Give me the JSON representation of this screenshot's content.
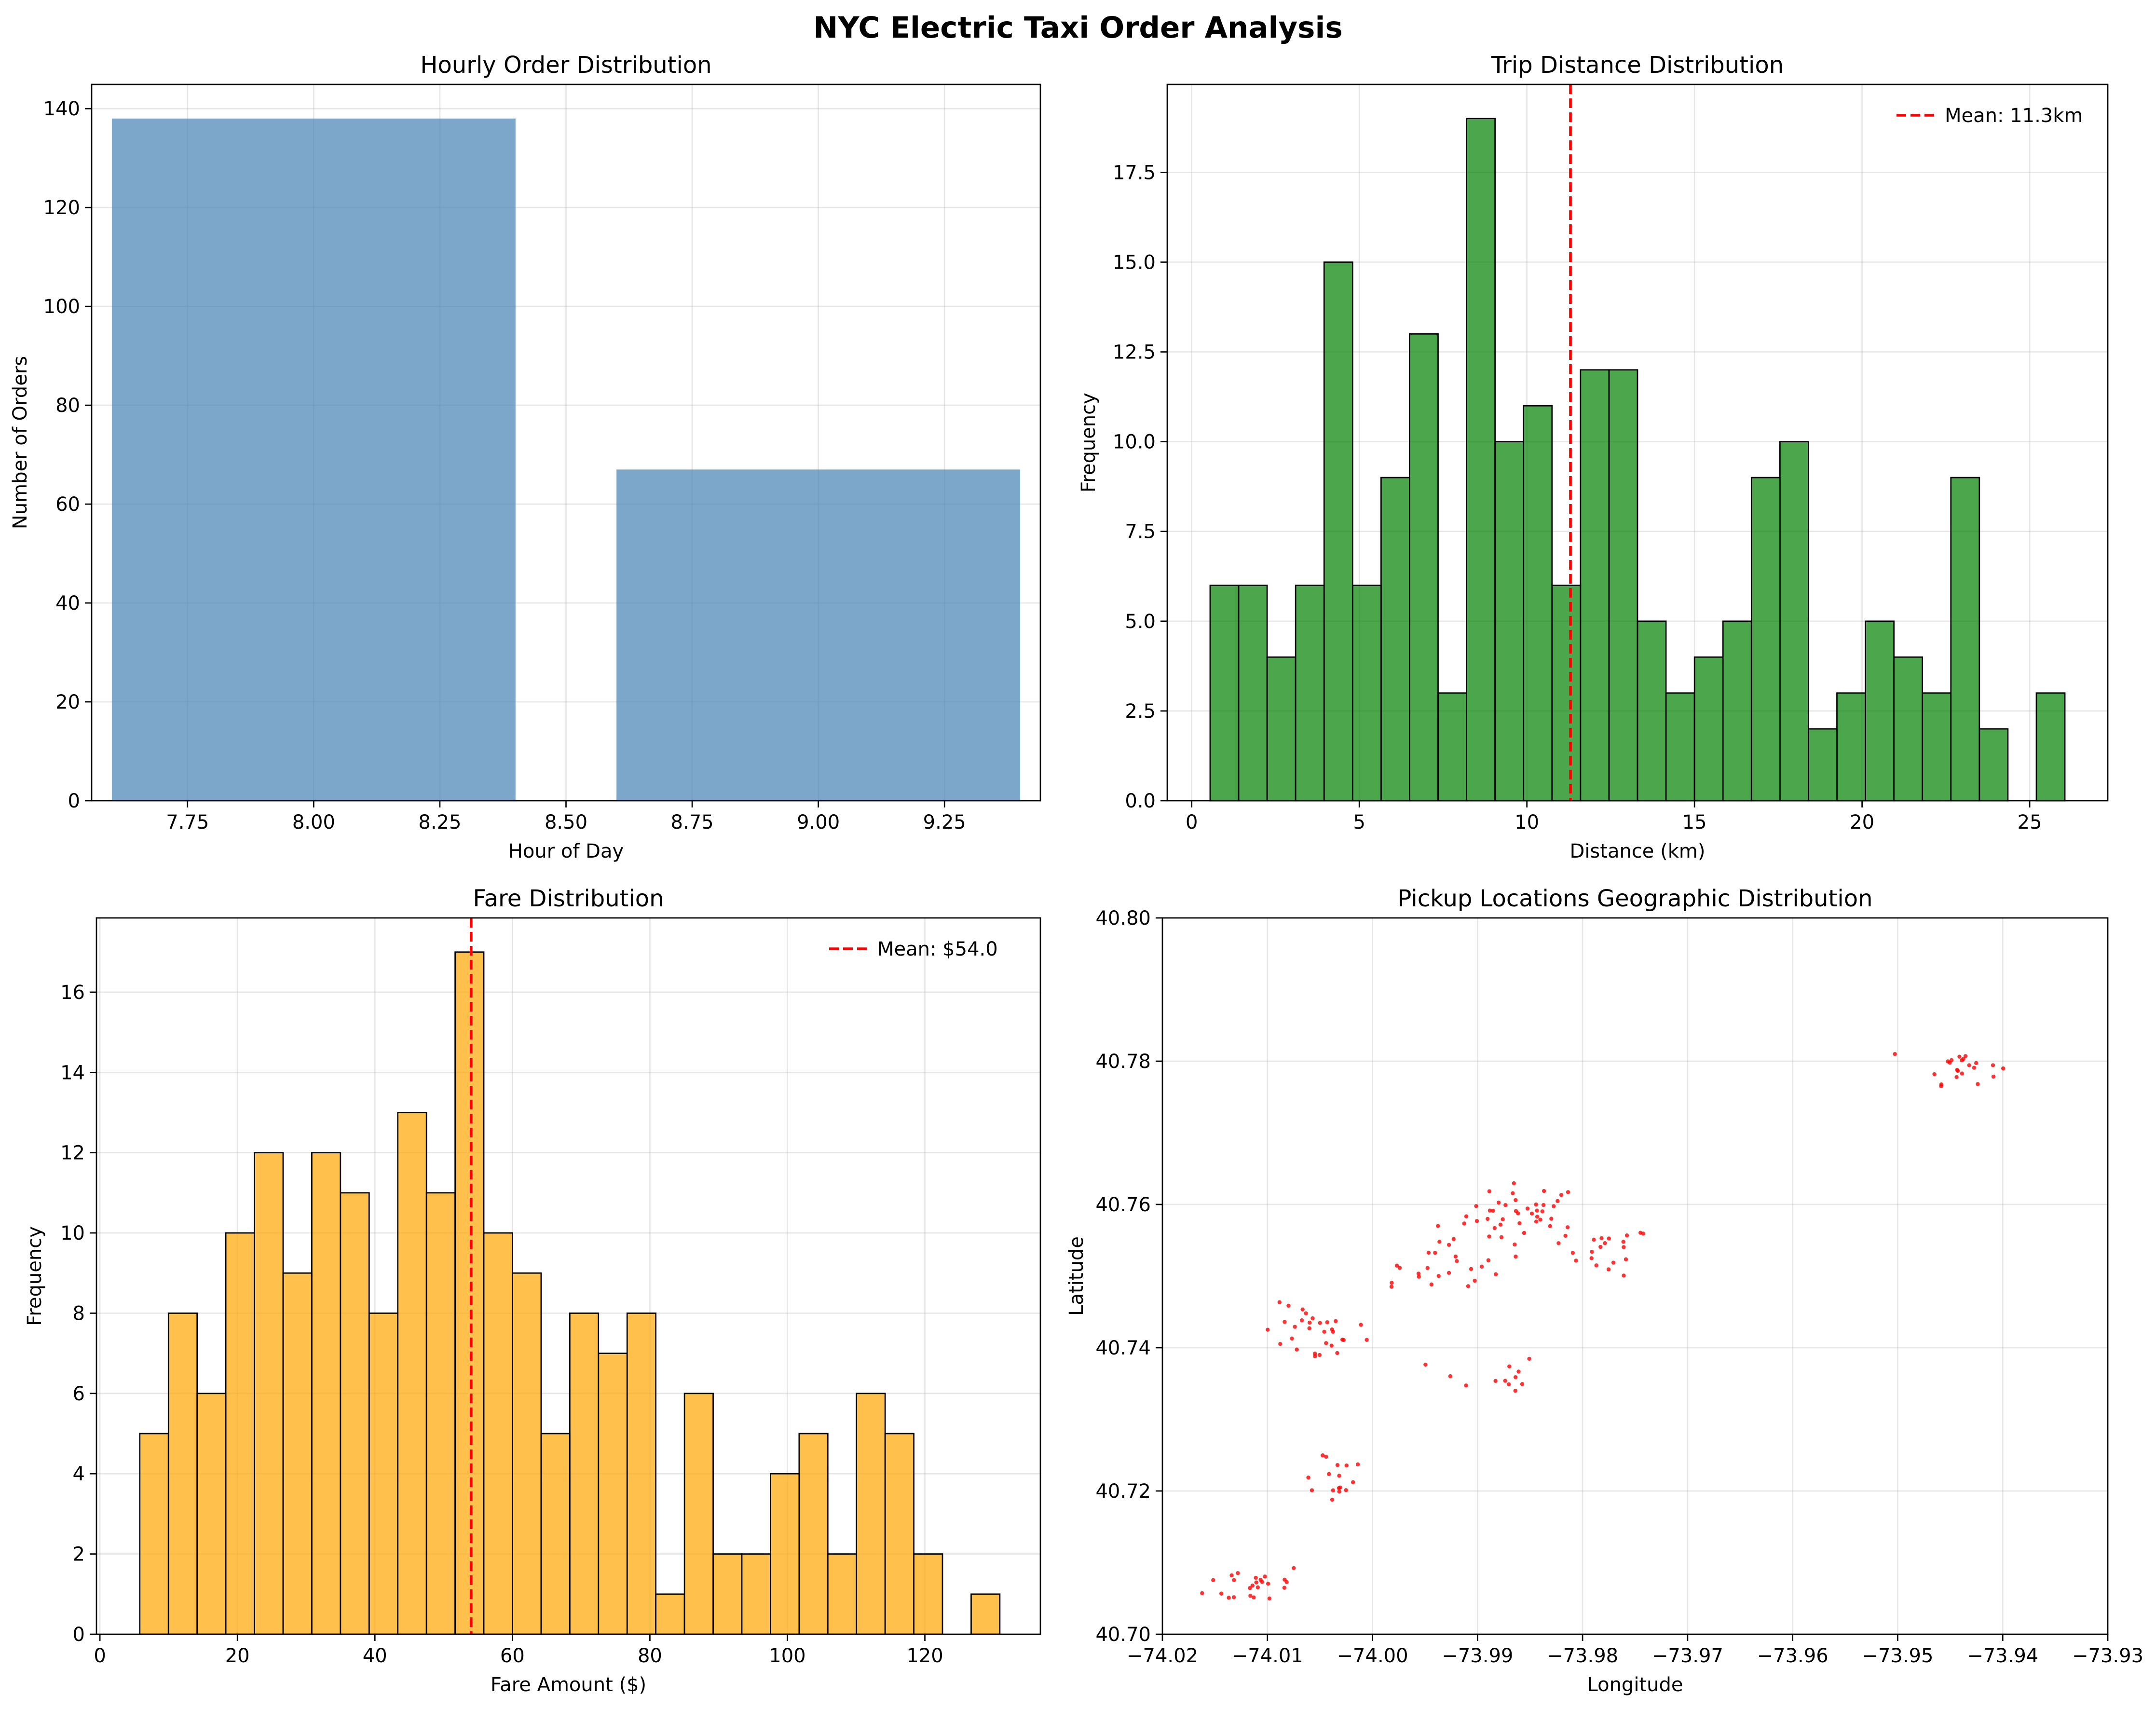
{
  "figure": {
    "title": "NYC Electric Taxi Order Analysis"
  },
  "colors": {
    "steel": "#4682b4",
    "green": "#008000",
    "orange": "#ffa500",
    "red": "#ff0000",
    "grid": "#b0b0b0",
    "edge": "#000000"
  },
  "chart_data": [
    {
      "id": "hourly",
      "type": "bar",
      "title": "Hourly Order Distribution",
      "xlabel": "Hour of Day",
      "ylabel": "Number of Orders",
      "x": [
        8,
        9
      ],
      "bar_width": 0.8,
      "values": [
        138,
        67
      ],
      "xlim": [
        7.56,
        9.44
      ],
      "ylim": [
        0,
        144.9
      ],
      "xticks": [
        7.75,
        8.0,
        8.25,
        8.5,
        8.75,
        9.0,
        9.25
      ],
      "xtick_labels": [
        "7.75",
        "8.00",
        "8.25",
        "8.50",
        "8.75",
        "9.00",
        "9.25"
      ],
      "yticks": [
        0,
        20,
        40,
        60,
        80,
        100,
        120,
        140
      ],
      "ytick_labels": [
        "0",
        "20",
        "40",
        "60",
        "80",
        "100",
        "120",
        "140"
      ],
      "grid": true,
      "bar_color": "#4682b4",
      "bar_alpha": 0.7
    },
    {
      "id": "distance",
      "type": "bar",
      "title": "Trip Distance Distribution",
      "xlabel": "Distance (km)",
      "ylabel": "Frequency",
      "bin_start": 0.55,
      "bin_width": 0.85,
      "values": [
        6,
        6,
        4,
        6,
        15,
        6,
        9,
        13,
        3,
        19,
        10,
        11,
        6,
        12,
        12,
        5,
        3,
        4,
        5,
        9,
        10,
        2,
        3,
        5,
        4,
        3,
        9,
        2,
        0,
        3
      ],
      "xlim": [
        -0.73,
        27.33
      ],
      "ylim": [
        0,
        19.95
      ],
      "xticks": [
        0,
        5,
        10,
        15,
        20,
        25
      ],
      "xtick_labels": [
        "0",
        "5",
        "10",
        "15",
        "20",
        "25"
      ],
      "yticks": [
        0,
        2.5,
        5,
        7.5,
        10,
        12.5,
        15,
        17.5
      ],
      "ytick_labels": [
        "0.0",
        "2.5",
        "5.0",
        "7.5",
        "10.0",
        "12.5",
        "15.0",
        "17.5"
      ],
      "grid": true,
      "bar_color": "#008000",
      "bar_alpha": 0.7,
      "mean_line": 11.3,
      "legend": {
        "label": "Mean: 11.3km",
        "placement": "upper right"
      }
    },
    {
      "id": "fare",
      "type": "bar",
      "title": "Fare Distribution",
      "xlabel": "Fare Amount ($)",
      "ylabel": "Frequency",
      "bin_start": 5.8,
      "bin_width": 4.17,
      "values": [
        5,
        8,
        6,
        10,
        12,
        9,
        12,
        11,
        8,
        13,
        11,
        17,
        10,
        9,
        5,
        8,
        7,
        8,
        1,
        6,
        2,
        2,
        4,
        5,
        2,
        6,
        5,
        2,
        0,
        1
      ],
      "xlim": [
        -0.5,
        136.8
      ],
      "ylim": [
        0,
        17.85
      ],
      "xticks": [
        0,
        20,
        40,
        60,
        80,
        100,
        120
      ],
      "xtick_labels": [
        "0",
        "20",
        "40",
        "60",
        "80",
        "100",
        "120"
      ],
      "yticks": [
        0,
        2,
        4,
        6,
        8,
        10,
        12,
        14,
        16
      ],
      "ytick_labels": [
        "0",
        "2",
        "4",
        "6",
        "8",
        "10",
        "12",
        "14",
        "16"
      ],
      "grid": true,
      "bar_color": "#ffa500",
      "bar_alpha": 0.7,
      "mean_line": 54.0,
      "legend": {
        "label": "Mean: $54.0",
        "placement": "upper right"
      }
    },
    {
      "id": "pickups",
      "type": "scatter",
      "title": "Pickup Locations Geographic Distribution",
      "xlabel": "Longitude",
      "ylabel": "Latitude",
      "xlim": [
        -74.02,
        -73.93
      ],
      "ylim": [
        40.7,
        40.8
      ],
      "xticks": [
        -74.02,
        -74.01,
        -74.0,
        -73.99,
        -73.98,
        -73.97,
        -73.96,
        -73.95,
        -73.94,
        -73.93
      ],
      "xtick_labels": [
        "−74.02",
        "−74.01",
        "−74.00",
        "−73.99",
        "−73.98",
        "−73.97",
        "−73.96",
        "−73.95",
        "−73.94",
        "−73.93"
      ],
      "yticks": [
        40.7,
        40.72,
        40.74,
        40.76,
        40.78,
        40.8
      ],
      "ytick_labels": [
        "40.70",
        "40.72",
        "40.74",
        "40.76",
        "40.78",
        "40.80"
      ],
      "grid": true,
      "point_color": "#ff0000",
      "clusters": [
        {
          "center": [
            -73.9855,
            40.7585
          ],
          "spread": [
            0.0028,
            0.0022
          ],
          "count": 42
        },
        {
          "center": [
            -73.9775,
            40.7535
          ],
          "spread": [
            0.002,
            0.0017
          ],
          "count": 20
        },
        {
          "center": [
            -73.9925,
            40.7515
          ],
          "spread": [
            0.002,
            0.0022
          ],
          "count": 18
        },
        {
          "center": [
            -73.9975,
            40.7505
          ],
          "spread": [
            0.0016,
            0.0016
          ],
          "count": 6
        },
        {
          "center": [
            -74.0065,
            40.742
          ],
          "spread": [
            0.002,
            0.002
          ],
          "count": 20
        },
        {
          "center": [
            -74.003,
            40.7415
          ],
          "spread": [
            0.0013,
            0.0018
          ],
          "count": 10
        },
        {
          "center": [
            -73.989,
            40.7355
          ],
          "spread": [
            0.0026,
            0.002
          ],
          "count": 12
        },
        {
          "center": [
            -74.004,
            40.7225
          ],
          "spread": [
            0.002,
            0.0022
          ],
          "count": 16
        },
        {
          "center": [
            -74.011,
            40.707
          ],
          "spread": [
            0.0024,
            0.0015
          ],
          "count": 24
        },
        {
          "center": [
            -73.944,
            40.7795
          ],
          "spread": [
            0.0018,
            0.0013
          ],
          "count": 22
        }
      ]
    }
  ]
}
